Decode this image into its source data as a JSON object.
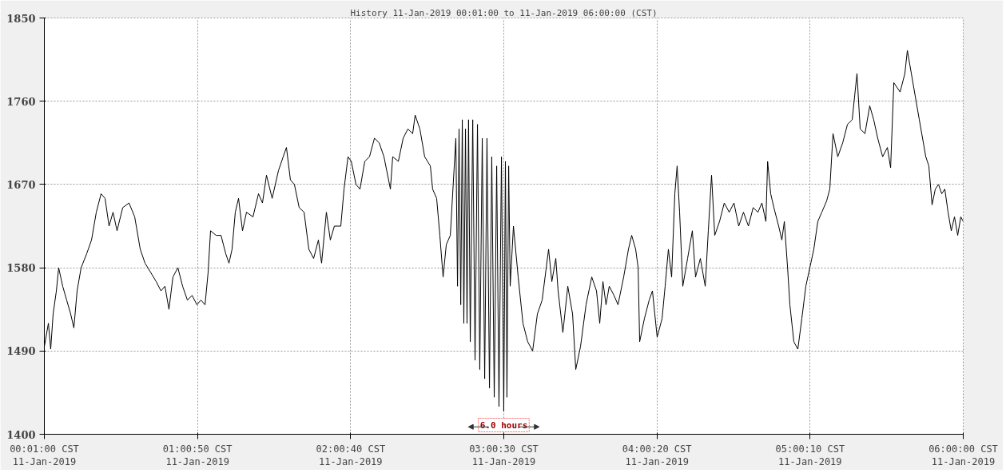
{
  "chart_data": {
    "type": "line",
    "title": "History 11-Jan-2019 00:01:00 to 11-Jan-2019 06:00:00 (CST)",
    "x": [
      "2019-01-11T00:01:01",
      "2019-01-11T00:02:35",
      "2019-01-11T00:03:29",
      "2019-01-11T00:04:26",
      "2019-01-11T00:05:42",
      "2019-01-11T00:06:36",
      "2019-01-11T00:08:10",
      "2019-01-11T00:09:43",
      "2019-01-11T00:11:17",
      "2019-01-11T00:12:32",
      "2019-01-11T00:13:48",
      "2019-01-11T00:15:22",
      "2019-01-11T00:17:31",
      "2019-01-11T00:19:26",
      "2019-01-11T00:21:18",
      "2019-01-11T00:23:10",
      "2019-01-11T00:24:43",
      "2019-01-11T00:26:17",
      "2019-01-11T00:27:50",
      "2019-01-11T00:29:24",
      "2019-01-11T00:31:37",
      "2019-01-11T00:34:05",
      "2019-01-11T00:36:18",
      "2019-01-11T00:38:28",
      "2019-01-11T00:40:19",
      "2019-01-11T00:42:32",
      "2019-01-11T00:44:42",
      "2019-01-11T00:46:34",
      "2019-01-11T00:48:07",
      "2019-01-11T00:49:41",
      "2019-01-11T00:51:14",
      "2019-01-11T00:53:10",
      "2019-01-11T00:55:01",
      "2019-01-11T00:56:53",
      "2019-01-11T00:58:44",
      "2019-01-11T01:00:36",
      "2019-01-11T01:02:10",
      "2019-01-11T01:03:47",
      "2019-01-11T01:04:59",
      "2019-01-11T01:05:56",
      "2019-01-11T01:08:06",
      "2019-01-11T01:10:01",
      "2019-01-11T01:11:53",
      "2019-01-11T01:13:08",
      "2019-01-11T01:14:20",
      "2019-01-11T01:15:36",
      "2019-01-11T01:16:52",
      "2019-01-11T01:18:25",
      "2019-01-11T01:19:59",
      "2019-01-11T01:22:30",
      "2019-01-11T01:24:40",
      "2019-01-11T01:26:13",
      "2019-01-11T01:27:47",
      "2019-01-11T01:30:00",
      "2019-01-11T01:32:28",
      "2019-01-11T01:34:19",
      "2019-01-11T01:35:35",
      "2019-01-11T01:37:08",
      "2019-01-11T01:38:42",
      "2019-01-11T01:40:34",
      "2019-01-11T01:42:29",
      "2019-01-11T01:44:20",
      "2019-01-11T01:46:12",
      "2019-01-11T01:48:04",
      "2019-01-11T01:49:19",
      "2019-01-11T01:51:11",
      "2019-01-11T01:52:44",
      "2019-01-11T01:54:18",
      "2019-01-11T01:56:49",
      "2019-01-11T01:58:05",
      "2019-01-11T01:59:38",
      "2019-01-11T02:00:54",
      "2019-01-11T02:02:46",
      "2019-01-11T02:04:19",
      "2019-01-11T02:06:11",
      "2019-01-11T02:08:02",
      "2019-01-11T02:09:58",
      "2019-01-11T02:11:49",
      "2019-01-11T02:13:41",
      "2019-01-11T02:16:12",
      "2019-01-11T02:17:06",
      "2019-01-11T02:19:19",
      "2019-01-11T02:21:11",
      "2019-01-11T02:23:02",
      "2019-01-11T02:24:54",
      "2019-01-11T02:25:52",
      "2019-01-11T02:27:43",
      "2019-01-11T02:29:35",
      "2019-01-11T02:31:48",
      "2019-01-11T02:32:42",
      "2019-01-11T02:34:16",
      "2019-01-11T02:35:31",
      "2019-01-11T02:36:47",
      "2019-01-11T02:38:02",
      "2019-01-11T02:39:36",
      "2019-01-11T02:41:46",
      "2019-01-11T02:42:25",
      "2019-01-11T02:43:01",
      "2019-01-11T02:43:41",
      "2019-01-11T02:44:17",
      "2019-01-11T02:44:53",
      "2019-01-11T02:45:32",
      "2019-01-11T02:46:08",
      "2019-01-11T02:46:44",
      "2019-01-11T02:47:24",
      "2019-01-11T02:48:22",
      "2019-01-11T02:49:16",
      "2019-01-11T02:50:13",
      "2019-01-11T02:51:07",
      "2019-01-11T02:52:05",
      "2019-01-11T02:53:02",
      "2019-01-11T02:53:56",
      "2019-01-11T02:54:54",
      "2019-01-11T02:55:48",
      "2019-01-11T02:56:46",
      "2019-01-11T02:57:43",
      "2019-01-11T02:58:37",
      "2019-01-11T02:59:35",
      "2019-01-11T03:00:29",
      "2019-01-11T03:01:08",
      "2019-01-11T03:01:44",
      "2019-01-11T03:02:24",
      "2019-01-11T03:03:00",
      "2019-01-11T03:04:16",
      "2019-01-11T03:06:07",
      "2019-01-11T03:07:59",
      "2019-01-11T03:09:50",
      "2019-01-11T03:11:46",
      "2019-01-11T03:13:37",
      "2019-01-11T03:15:29",
      "2019-01-11T03:18:00",
      "2019-01-11T03:19:16",
      "2019-01-11T03:20:49",
      "2019-01-11T03:21:43",
      "2019-01-11T03:23:35",
      "2019-01-11T03:25:30",
      "2019-01-11T03:27:22",
      "2019-01-11T03:28:37",
      "2019-01-11T03:30:29",
      "2019-01-11T03:32:38",
      "2019-01-11T03:34:52",
      "2019-01-11T03:36:43",
      "2019-01-11T03:37:59",
      "2019-01-11T03:39:14",
      "2019-01-11T03:40:26",
      "2019-01-11T03:41:42",
      "2019-01-11T03:43:34",
      "2019-01-11T03:45:07",
      "2019-01-11T03:47:20",
      "2019-01-11T03:49:12",
      "2019-01-11T03:50:28",
      "2019-01-11T03:52:01",
      "2019-01-11T03:52:59",
      "2019-01-11T03:53:35",
      "2019-01-11T03:55:26",
      "2019-01-11T03:57:18",
      "2019-01-11T03:58:34",
      "2019-01-11T04:00:25",
      "2019-01-11T04:02:20",
      "2019-01-11T04:03:32",
      "2019-01-11T04:04:48",
      "2019-01-11T04:06:04",
      "2019-01-11T04:07:19",
      "2019-01-11T04:08:13",
      "2019-01-11T04:09:11",
      "2019-01-11T04:10:26",
      "2019-01-11T04:12:18",
      "2019-01-11T04:14:10",
      "2019-01-11T04:15:25",
      "2019-01-11T04:17:17",
      "2019-01-11T04:19:12",
      "2019-01-11T04:20:24",
      "2019-01-11T04:21:40",
      "2019-01-11T04:22:55",
      "2019-01-11T04:24:47",
      "2019-01-11T04:26:38",
      "2019-01-11T04:28:34",
      "2019-01-11T04:30:25",
      "2019-01-11T04:32:17",
      "2019-01-11T04:34:08",
      "2019-01-11T04:36:04",
      "2019-01-11T04:37:55",
      "2019-01-11T04:39:47",
      "2019-01-11T04:41:20",
      "2019-01-11T04:42:54",
      "2019-01-11T04:43:34",
      "2019-01-11T04:44:46",
      "2019-01-11T04:46:01",
      "2019-01-11T04:47:53",
      "2019-01-11T04:49:08",
      "2019-01-11T04:50:06",
      "2019-01-11T04:51:22",
      "2019-01-11T04:52:16",
      "2019-01-11T04:53:49",
      "2019-01-11T04:55:23",
      "2019-01-11T04:56:56",
      "2019-01-11T04:58:30",
      "2019-01-11T05:00:04",
      "2019-01-11T05:01:37",
      "2019-01-11T05:03:11",
      "2019-01-11T05:04:44",
      "2019-01-11T05:06:36",
      "2019-01-11T05:07:52",
      "2019-01-11T05:09:07",
      "2019-01-11T05:10:59",
      "2019-01-11T05:12:54",
      "2019-01-11T05:14:46",
      "2019-01-11T05:16:37",
      "2019-01-11T05:18:29",
      "2019-01-11T05:19:44",
      "2019-01-11T05:21:36",
      "2019-01-11T05:23:28",
      "2019-01-11T05:25:01",
      "2019-01-11T05:26:35",
      "2019-01-11T05:28:30",
      "2019-01-11T05:30:22",
      "2019-01-11T05:31:37",
      "2019-01-11T05:32:53",
      "2019-01-11T05:35:20",
      "2019-01-11T05:37:12",
      "2019-01-11T05:38:10",
      "2019-01-11T05:39:43",
      "2019-01-11T05:41:35",
      "2019-01-11T05:42:50",
      "2019-01-11T05:44:06",
      "2019-01-11T05:45:22",
      "2019-01-11T05:46:34",
      "2019-01-11T05:47:49",
      "2019-01-11T05:49:05",
      "2019-01-11T05:50:20",
      "2019-01-11T05:51:36",
      "2019-01-11T05:52:48",
      "2019-01-11T05:54:04",
      "2019-01-11T05:55:19",
      "2019-01-11T05:56:35",
      "2019-01-11T05:57:50",
      "2019-01-11T05:59:02",
      "2019-01-11T06:00:00"
    ],
    "values": [
      1495,
      1520,
      1492,
      1530,
      1555,
      1580,
      1560,
      1545,
      1530,
      1515,
      1555,
      1580,
      1595,
      1610,
      1640,
      1660,
      1655,
      1625,
      1640,
      1620,
      1645,
      1650,
      1635,
      1600,
      1585,
      1575,
      1565,
      1555,
      1560,
      1535,
      1570,
      1580,
      1560,
      1545,
      1550,
      1540,
      1545,
      1540,
      1575,
      1620,
      1615,
      1615,
      1595,
      1585,
      1600,
      1640,
      1655,
      1620,
      1640,
      1635,
      1660,
      1650,
      1680,
      1655,
      1685,
      1700,
      1710,
      1675,
      1670,
      1645,
      1640,
      1600,
      1590,
      1610,
      1585,
      1640,
      1610,
      1625,
      1625,
      1665,
      1700,
      1695,
      1670,
      1665,
      1695,
      1700,
      1720,
      1715,
      1700,
      1665,
      1700,
      1695,
      1720,
      1730,
      1725,
      1745,
      1730,
      1700,
      1690,
      1665,
      1655,
      1615,
      1570,
      1605,
      1615,
      1720,
      1560,
      1730,
      1540,
      1740,
      1520,
      1730,
      1520,
      1740,
      1500,
      1740,
      1480,
      1735,
      1470,
      1720,
      1460,
      1720,
      1450,
      1700,
      1440,
      1690,
      1430,
      1700,
      1425,
      1695,
      1440,
      1690,
      1560,
      1625,
      1570,
      1520,
      1500,
      1490,
      1530,
      1545,
      1600,
      1565,
      1590,
      1555,
      1510,
      1560,
      1530,
      1470,
      1495,
      1540,
      1570,
      1555,
      1520,
      1565,
      1540,
      1560,
      1550,
      1540,
      1570,
      1600,
      1615,
      1600,
      1580,
      1500,
      1525,
      1545,
      1555,
      1505,
      1525,
      1560,
      1600,
      1570,
      1660,
      1690,
      1640,
      1560,
      1590,
      1620,
      1570,
      1590,
      1560,
      1620,
      1680,
      1615,
      1630,
      1650,
      1640,
      1650,
      1625,
      1640,
      1625,
      1645,
      1640,
      1650,
      1630,
      1695,
      1660,
      1645,
      1625,
      1610,
      1630,
      1580,
      1540,
      1500,
      1492,
      1525,
      1560,
      1580,
      1600,
      1630,
      1640,
      1652,
      1665,
      1725,
      1700,
      1715,
      1735,
      1740,
      1790,
      1730,
      1725,
      1755,
      1740,
      1720,
      1700,
      1710,
      1688,
      1780,
      1770,
      1790,
      1815,
      1790,
      1760,
      1740,
      1720,
      1700,
      1690,
      1648,
      1665,
      1670,
      1660,
      1665,
      1640,
      1620,
      1635,
      1615,
      1635,
      1630
    ],
    "color": "#000000",
    "xlim": [
      "2019-01-11T00:01:00",
      "2019-01-11T06:00:00"
    ],
    "xticks": [
      {
        "value": "2019-01-11T00:01:00",
        "label": "00:01:00 CST\n11-Jan-2019"
      },
      {
        "value": "2019-01-11T01:00:50",
        "label": "01:00:50 CST\n11-Jan-2019"
      },
      {
        "value": "2019-01-11T02:00:40",
        "label": "02:00:40 CST\n11-Jan-2019"
      },
      {
        "value": "2019-01-11T03:00:30",
        "label": "03:00:30 CST\n11-Jan-2019"
      },
      {
        "value": "2019-01-11T04:00:20",
        "label": "04:00:20 CST\n11-Jan-2019"
      },
      {
        "value": "2019-01-11T05:00:10",
        "label": "05:00:10 CST\n11-Jan-2019"
      },
      {
        "value": "2019-01-11T06:00:00",
        "label": "06:00:00 CST\n11-Jan-2019"
      }
    ],
    "ylim": [
      1400,
      1850
    ],
    "yticks": [
      1400,
      1490,
      1580,
      1670,
      1760,
      1850
    ],
    "grid": true,
    "annotations": [
      "6.0 hours"
    ]
  }
}
